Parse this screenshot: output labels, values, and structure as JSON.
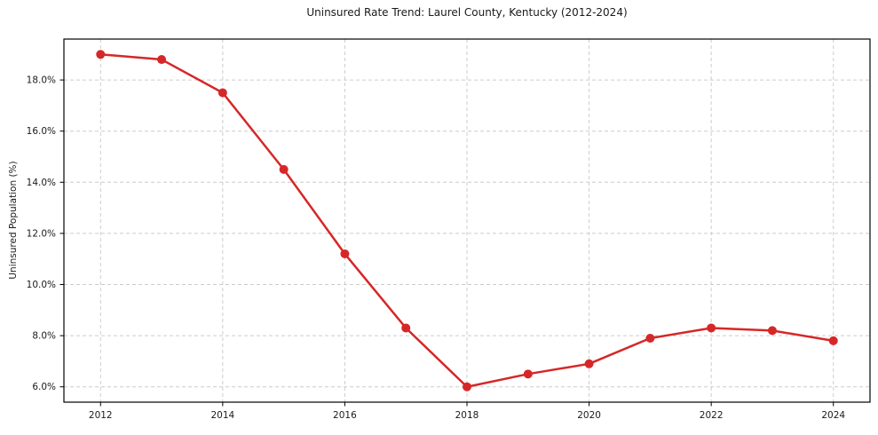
{
  "chart_data": {
    "type": "line",
    "title": "Uninsured Rate Trend: Laurel County, Kentucky (2012-2024)",
    "xlabel": "",
    "ylabel": "Uninsured Population (%)",
    "x": [
      2012,
      2013,
      2014,
      2015,
      2016,
      2017,
      2018,
      2019,
      2020,
      2021,
      2022,
      2023,
      2024
    ],
    "series": [
      {
        "name": "Uninsured rate",
        "values": [
          19.0,
          18.8,
          17.5,
          14.5,
          11.2,
          8.3,
          6.0,
          6.5,
          6.9,
          7.9,
          8.3,
          8.2,
          7.8
        ],
        "color": "#d62728",
        "marker": "circle",
        "line_width": 2.5,
        "marker_radius": 5
      }
    ],
    "xticks": {
      "values": [
        2012,
        2014,
        2016,
        2018,
        2020,
        2022,
        2024
      ],
      "labels": [
        "2012",
        "2014",
        "2016",
        "2018",
        "2020",
        "2022",
        "2024"
      ]
    },
    "yticks": {
      "values": [
        6,
        8,
        10,
        12,
        14,
        16,
        18
      ],
      "labels": [
        "6.0%",
        "8.0%",
        "10.0%",
        "12.0%",
        "14.0%",
        "16.0%",
        "18.0%"
      ]
    },
    "xlim": [
      2011.4,
      2024.6
    ],
    "ylim": [
      5.4,
      19.6
    ],
    "grid": {
      "visible": true,
      "style": "dashed",
      "color": "#cccccc"
    },
    "legend": {
      "visible": false
    },
    "background_color": "#ffffff",
    "spine_color": "#000000",
    "tick_label_color": "#1a1a1a"
  }
}
